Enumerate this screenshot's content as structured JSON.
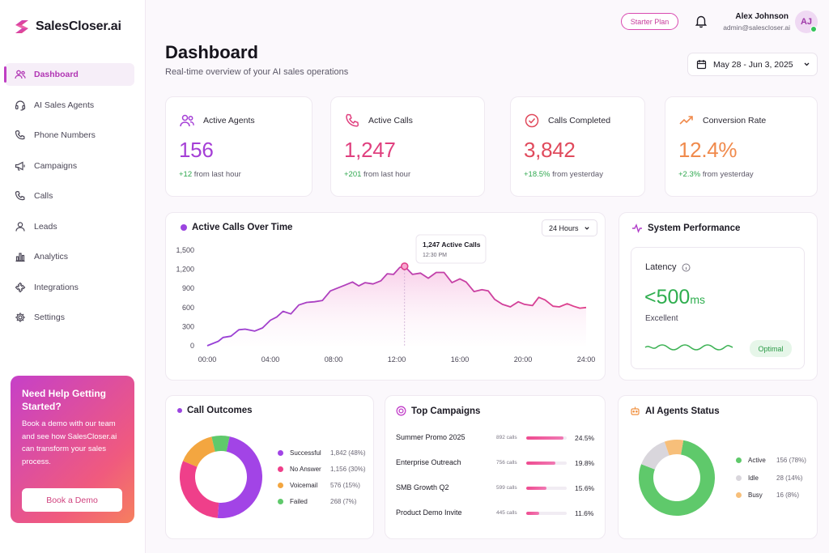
{
  "brand": {
    "name": "SalesCloser.ai"
  },
  "sidebar": {
    "items": [
      {
        "label": "Dashboard",
        "icon": "dashboard-icon",
        "active": true
      },
      {
        "label": "AI Sales Agents",
        "icon": "headset-icon"
      },
      {
        "label": "Phone Numbers",
        "icon": "phone-icon"
      },
      {
        "label": "Campaigns",
        "icon": "megaphone-icon"
      },
      {
        "label": "Calls",
        "icon": "phone-icon"
      },
      {
        "label": "Leads",
        "icon": "user-icon"
      },
      {
        "label": "Analytics",
        "icon": "bar-chart-icon"
      },
      {
        "label": "Integrations",
        "icon": "puzzle-icon"
      },
      {
        "label": "Settings",
        "icon": "gear-icon"
      }
    ],
    "help": {
      "title": "Need Help Getting Started?",
      "text": "Book a demo with our team and see how SalesCloser.ai can transform your sales process.",
      "button": "Book a Demo"
    }
  },
  "header": {
    "plan": "Starter Plan",
    "user_name": "Alex Johnson",
    "user_email": "admin@salescloser.ai",
    "avatar_initials": "AJ",
    "title": "Dashboard",
    "subtitle": "Real-time overview of your AI sales operations",
    "date_range": "May 28 - Jun 3, 2025"
  },
  "kpis": [
    {
      "label": "Active Agents",
      "value": "156",
      "change": "+12",
      "change_text": "from last hour",
      "color": "#a53fd6",
      "icon": "users-icon"
    },
    {
      "label": "Active Calls",
      "value": "1,247",
      "change": "+201",
      "change_text": "from last hour",
      "color": "#e0407f",
      "icon": "phone-icon"
    },
    {
      "label": "Calls Completed",
      "value": "3,842",
      "change": "+18.5%",
      "change_text": "from yesterday",
      "color": "#e04a5c",
      "icon": "check-circle-icon"
    },
    {
      "label": "Conversion Rate",
      "value": "12.4%",
      "change": "+2.3%",
      "change_text": "from yesterday",
      "color": "#f08a4c",
      "icon": "trending-up-icon"
    }
  ],
  "calls_chart": {
    "title": "Active Calls Over Time",
    "range": "24 Hours",
    "tooltip_value": "1,247 Active Calls",
    "tooltip_time": "12:30 PM"
  },
  "chart_data": {
    "type": "area",
    "x_ticks": [
      "00:00",
      "04:00",
      "08:00",
      "12:00",
      "16:00",
      "20:00",
      "24:00"
    ],
    "y_ticks": [
      "0",
      "300",
      "600",
      "900",
      "1,200",
      "1,500"
    ],
    "ylim": [
      0,
      1500
    ],
    "xlim": [
      0,
      24
    ],
    "series": [
      {
        "x": [
          0,
          0.7,
          1.0,
          1.5,
          2.0,
          2.4,
          3.0,
          3.5,
          4.0,
          4.4,
          4.8,
          5.3,
          5.8,
          6.3,
          6.8,
          7.3,
          7.8,
          8.2,
          8.7,
          9.2,
          9.6,
          10.0,
          10.5,
          11.0,
          11.4,
          11.8,
          12.2,
          12.5,
          13.0,
          13.5,
          14.0,
          14.5,
          15.0,
          15.5,
          16.0,
          16.4,
          16.9,
          17.4,
          17.8,
          18.2,
          18.7,
          19.2,
          19.7,
          20.1,
          20.6,
          21.0,
          21.4,
          21.9,
          22.3,
          22.8,
          23.2,
          23.6,
          24.0
        ],
        "values": [
          0,
          70,
          130,
          150,
          250,
          260,
          230,
          280,
          400,
          450,
          540,
          500,
          640,
          680,
          690,
          710,
          860,
          900,
          950,
          1000,
          940,
          990,
          970,
          1020,
          1130,
          1120,
          1230,
          1247,
          1120,
          1140,
          1060,
          1150,
          1150,
          990,
          1050,
          1000,
          850,
          880,
          860,
          730,
          650,
          610,
          690,
          650,
          630,
          760,
          720,
          620,
          610,
          660,
          620,
          590,
          600
        ]
      }
    ]
  },
  "performance": {
    "title": "System Performance",
    "metric": "Latency",
    "value": "<500",
    "unit": "ms",
    "status": "Excellent",
    "badge": "Optimal"
  },
  "outcomes": {
    "title": "Call Outcomes",
    "items": [
      {
        "label": "Successful",
        "value": "1,842 (48%)",
        "pct": 48,
        "color": "#a244e6"
      },
      {
        "label": "No Answer",
        "value": "1,156 (30%)",
        "pct": 30,
        "color": "#ef3f8a"
      },
      {
        "label": "Voicemail",
        "value": "576 (15%)",
        "pct": 15,
        "color": "#f3a640"
      },
      {
        "label": "Failed",
        "value": "268 (7%)",
        "pct": 7,
        "color": "#5fc96b"
      }
    ]
  },
  "campaigns": {
    "title": "Top Campaigns",
    "items": [
      {
        "name": "Summer Promo 2025",
        "calls": "892 calls",
        "pct": "24.5%",
        "fill": 0.92
      },
      {
        "name": "Enterprise Outreach",
        "calls": "756 calls",
        "pct": "19.8%",
        "fill": 0.72
      },
      {
        "name": "SMB Growth Q2",
        "calls": "599 calls",
        "pct": "15.6%",
        "fill": 0.5
      },
      {
        "name": "Product Demo Invite",
        "calls": "445 calls",
        "pct": "11.6%",
        "fill": 0.32
      }
    ]
  },
  "agents_status": {
    "title": "AI Agents Status",
    "items": [
      {
        "label": "Active",
        "value": "156 (78%)",
        "pct": 78,
        "color": "#5fc96b"
      },
      {
        "label": "Idle",
        "value": "28 (14%)",
        "pct": 14,
        "color": "#d9d6dc"
      },
      {
        "label": "Busy",
        "value": "16 (8%)",
        "pct": 8,
        "color": "#f7bf7a"
      }
    ]
  }
}
